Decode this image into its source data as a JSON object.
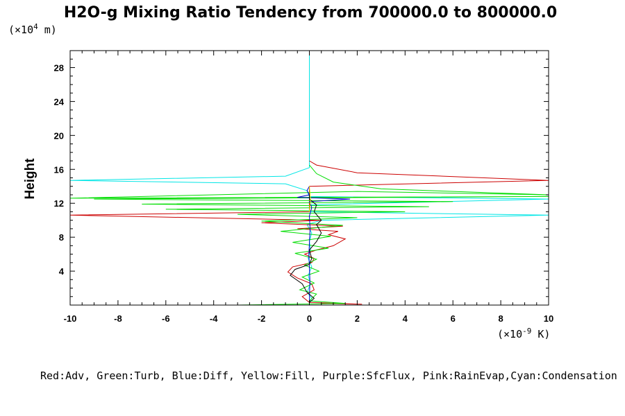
{
  "chart_data": {
    "type": "line",
    "title": "H2O-g Mixing Ratio Tendency from 700000.0 to 800000.0",
    "y_unit_prefix": "(×10",
    "y_unit_exp": "4",
    "y_unit_suffix": " m)",
    "x_unit_prefix": "(×10",
    "x_unit_exp": "-9",
    "x_unit_suffix": " K)",
    "ylabel": "Height",
    "xlabel": "",
    "xlim": [
      -10,
      10
    ],
    "ylim": [
      0,
      30
    ],
    "xticks": [
      -10,
      -8,
      -6,
      -4,
      -2,
      0,
      2,
      4,
      6,
      8,
      10
    ],
    "yticks": [
      4,
      8,
      12,
      16,
      20,
      24,
      28
    ],
    "legend_text": "Red:Adv, Green:Turb, Blue:Diff, Yellow:Fill, Purple:SfcFlux, Pink:RainEvap,Cyan:Condensation",
    "series": [
      {
        "color": "#00e6e6",
        "points": [
          [
            0,
            0.3
          ],
          [
            0.1,
            0.8
          ],
          [
            -0.1,
            1.5
          ],
          [
            0.05,
            2.5
          ],
          [
            -0.05,
            3.5
          ],
          [
            0.1,
            4.5
          ],
          [
            -0.05,
            5.5
          ],
          [
            0.05,
            6.5
          ],
          [
            0,
            7.5
          ],
          [
            0.1,
            8.5
          ],
          [
            -0.1,
            9.5
          ],
          [
            0.5,
            10
          ],
          [
            10,
            10.6
          ],
          [
            0,
            11
          ],
          [
            0,
            11.8
          ],
          [
            10,
            12.5
          ],
          [
            0,
            12.8
          ],
          [
            -0.1,
            13.5
          ],
          [
            -1,
            14.3
          ],
          [
            -10,
            14.7
          ],
          [
            -1,
            15.2
          ],
          [
            0,
            16.2
          ],
          [
            0,
            17
          ],
          [
            0,
            30
          ]
        ]
      },
      {
        "color": "#cc0000",
        "points": [
          [
            0.5,
            0.2
          ],
          [
            2.2,
            0.1
          ],
          [
            0,
            0.3
          ],
          [
            -0.3,
            1
          ],
          [
            0.2,
            1.8
          ],
          [
            0.1,
            2.5
          ],
          [
            -0.5,
            3.2
          ],
          [
            -0.9,
            3.9
          ],
          [
            -0.7,
            4.5
          ],
          [
            0.1,
            5
          ],
          [
            0.2,
            5.5
          ],
          [
            -0.2,
            6
          ],
          [
            0.3,
            6.5
          ],
          [
            1,
            7
          ],
          [
            1.5,
            7.8
          ],
          [
            0.8,
            8.3
          ],
          [
            1.2,
            8.7
          ],
          [
            -0.5,
            9
          ],
          [
            1.4,
            9.3
          ],
          [
            -2,
            9.7
          ],
          [
            0.5,
            10
          ],
          [
            -10,
            10.6
          ],
          [
            0,
            11
          ],
          [
            0,
            14
          ],
          [
            10,
            14.7
          ],
          [
            2,
            15.6
          ],
          [
            0.3,
            16.5
          ],
          [
            0,
            17
          ]
        ]
      },
      {
        "color": "#00dd00",
        "points": [
          [
            -3,
            0
          ],
          [
            1.5,
            0.2
          ],
          [
            0,
            0.5
          ],
          [
            0.3,
            1.3
          ],
          [
            -0.4,
            1.8
          ],
          [
            0.2,
            2.6
          ],
          [
            -0.3,
            3.3
          ],
          [
            0.4,
            4
          ],
          [
            -0.2,
            4.7
          ],
          [
            0.3,
            5.4
          ],
          [
            -0.6,
            6.1
          ],
          [
            0.8,
            6.7
          ],
          [
            -0.7,
            7.4
          ],
          [
            0.9,
            8.1
          ],
          [
            -1.2,
            8.7
          ],
          [
            1.4,
            9.4
          ],
          [
            -2,
            9.9
          ],
          [
            2,
            10.3
          ],
          [
            -3,
            10.7
          ],
          [
            4,
            11
          ],
          [
            -6,
            11.3
          ],
          [
            5,
            11.6
          ],
          [
            -7,
            11.9
          ],
          [
            6,
            12.2
          ],
          [
            -9,
            12.5
          ],
          [
            10,
            12.8
          ],
          [
            -10,
            12.6
          ],
          [
            2,
            13.4
          ],
          [
            10,
            13
          ],
          [
            3,
            13.7
          ],
          [
            1,
            14.5
          ],
          [
            0.3,
            15.5
          ],
          [
            0,
            16.5
          ]
        ]
      },
      {
        "color": "#0000cc",
        "points": [
          [
            0,
            0.2
          ],
          [
            0.02,
            3
          ],
          [
            -0.02,
            6
          ],
          [
            0.03,
            9
          ],
          [
            0,
            10.5
          ],
          [
            0.1,
            11.5
          ],
          [
            0,
            12.2
          ],
          [
            1.7,
            12.5
          ],
          [
            -0.5,
            12.7
          ],
          [
            0,
            13
          ],
          [
            -0.1,
            13.5
          ],
          [
            0,
            14
          ]
        ]
      },
      {
        "color": "#000000",
        "points": [
          [
            0,
            0.3
          ],
          [
            0.2,
            0.8
          ],
          [
            -0.1,
            1.5
          ],
          [
            -0.3,
            2.5
          ],
          [
            -0.8,
            3.5
          ],
          [
            -0.6,
            4.2
          ],
          [
            0,
            4.8
          ],
          [
            0.1,
            5.5
          ],
          [
            0,
            6.5
          ],
          [
            0.3,
            7.5
          ],
          [
            0.5,
            8.5
          ],
          [
            0.3,
            9.5
          ],
          [
            0.5,
            10
          ],
          [
            0.2,
            11
          ],
          [
            0.3,
            11.8
          ],
          [
            0,
            12.5
          ],
          [
            0,
            13
          ]
        ]
      },
      {
        "color": "#e6e600",
        "points": [
          [
            0,
            11
          ],
          [
            0.05,
            12.5
          ],
          [
            0,
            14
          ]
        ]
      }
    ]
  }
}
